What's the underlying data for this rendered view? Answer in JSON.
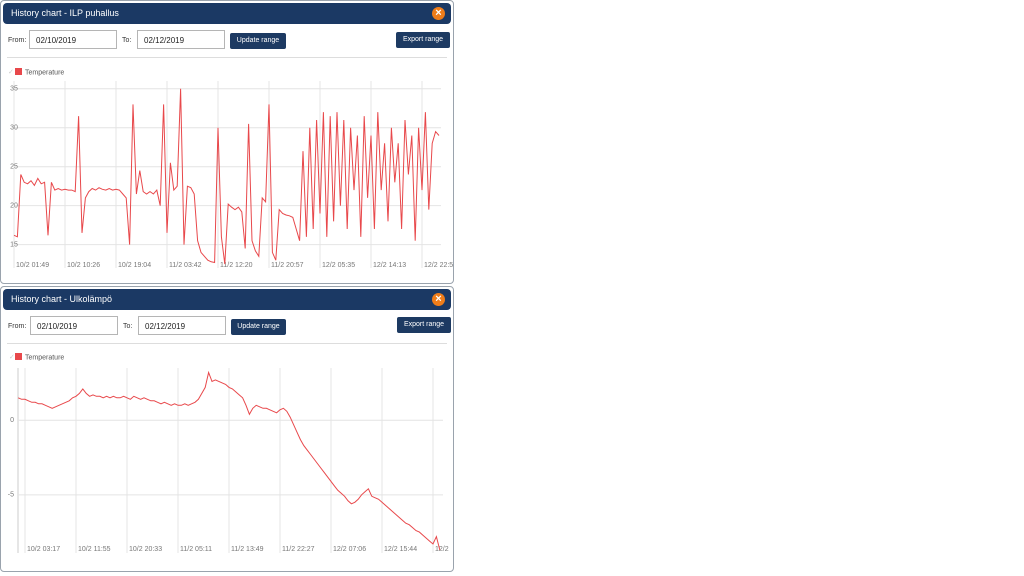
{
  "dialogs": [
    {
      "title": "History chart - ILP puhallus",
      "from_label": "From:",
      "from_value": "02/10/2019",
      "to_label": "To:",
      "to_value": "02/12/2019",
      "update_button": "Update range",
      "export_button": "Export range"
    },
    {
      "title": "History chart - Ulkolämpö",
      "from_label": "From:",
      "from_value": "02/10/2019",
      "to_label": "To:",
      "to_value": "02/12/2019",
      "update_button": "Update range",
      "export_button": "Export range"
    }
  ],
  "chart_data": [
    {
      "type": "line",
      "categories": [
        "10/2 01:49",
        null,
        null,
        null,
        null,
        null,
        null,
        null,
        null,
        null,
        null,
        null,
        null,
        null,
        null,
        "10/2 10:26",
        null,
        null,
        null,
        null,
        null,
        null,
        null,
        null,
        null,
        null,
        null,
        null,
        null,
        null,
        "10/2 19:04",
        null,
        null,
        null,
        null,
        null,
        null,
        null,
        null,
        null,
        null,
        null,
        null,
        null,
        null,
        "11/2 03:42",
        null,
        null,
        null,
        null,
        null,
        null,
        null,
        null,
        null,
        null,
        null,
        null,
        null,
        null,
        "11/2 12:20",
        null,
        null,
        null,
        null,
        null,
        null,
        null,
        null,
        null,
        null,
        null,
        null,
        null,
        null,
        "11/2 20:57",
        null,
        null,
        null,
        null,
        null,
        null,
        null,
        null,
        null,
        null,
        null,
        null,
        null,
        null,
        "12/2 05:35",
        null,
        null,
        null,
        null,
        null,
        null,
        null,
        null,
        null,
        null,
        null,
        null,
        null,
        null,
        "12/2 14:13",
        null,
        null,
        null,
        null,
        null,
        null,
        null,
        null,
        null,
        null,
        null,
        null,
        null,
        null,
        "12/2 22:5",
        null,
        null,
        null,
        null,
        null
      ],
      "series": [
        {
          "name": "Temperature",
          "color": "#e8484b",
          "values": [
            16.2,
            16,
            24,
            23,
            22.8,
            23.2,
            22.6,
            23.5,
            22.8,
            23,
            16.2,
            23,
            22,
            22.2,
            22,
            22.1,
            22,
            22,
            21.8,
            31.5,
            16.5,
            21,
            21.8,
            22.2,
            22,
            22.3,
            22.1,
            22,
            22.2,
            22,
            22.1,
            22,
            21.5,
            21,
            15,
            33,
            21.5,
            24.5,
            21.8,
            21.5,
            21.8,
            21.5,
            22,
            20,
            33,
            16.5,
            25.5,
            22,
            22.5,
            35,
            15,
            22.5,
            22.3,
            21.5,
            15.5,
            14,
            13.5,
            13,
            12.8,
            12.7,
            30,
            16,
            12.5,
            20.2,
            19.8,
            19.5,
            19.8,
            19.2,
            14.5,
            30.5,
            15.5,
            14.2,
            13.5,
            21,
            20.5,
            33,
            14,
            13,
            19.5,
            19,
            18.8,
            18.7,
            18.5,
            17,
            15.5,
            27,
            16,
            30,
            17,
            31,
            19,
            32,
            16,
            31.5,
            18,
            32,
            20,
            31,
            17,
            30,
            22,
            29,
            16,
            31.5,
            21,
            29,
            17,
            32,
            22,
            28,
            18,
            30,
            23,
            28,
            17,
            31,
            24,
            29,
            15.5,
            30,
            22,
            32,
            19.5,
            28,
            29.5,
            29
          ]
        }
      ],
      "ylim": [
        12,
        36
      ],
      "yticks": [
        15,
        20,
        25,
        30,
        35
      ],
      "grid": true
    },
    {
      "type": "line",
      "categories": [
        null,
        null,
        "10/2 03:17",
        null,
        null,
        null,
        null,
        null,
        null,
        null,
        null,
        null,
        null,
        null,
        null,
        null,
        null,
        "10/2 11:55",
        null,
        null,
        null,
        null,
        null,
        null,
        null,
        null,
        null,
        null,
        null,
        null,
        null,
        null,
        "10/2 20:33",
        null,
        null,
        null,
        null,
        null,
        null,
        null,
        null,
        null,
        null,
        null,
        null,
        null,
        null,
        "11/2 05:11",
        null,
        null,
        null,
        null,
        null,
        null,
        null,
        null,
        null,
        null,
        null,
        null,
        null,
        null,
        "11/2 13:49",
        null,
        null,
        null,
        null,
        null,
        null,
        null,
        null,
        null,
        null,
        null,
        null,
        null,
        null,
        "11/2 22:27",
        null,
        null,
        null,
        null,
        null,
        null,
        null,
        null,
        null,
        null,
        null,
        null,
        null,
        null,
        "12/2 07:06",
        null,
        null,
        null,
        null,
        null,
        null,
        null,
        null,
        null,
        null,
        null,
        null,
        null,
        null,
        "12/2 15:44",
        null,
        null,
        null,
        null,
        null,
        null,
        null,
        null,
        null,
        null,
        null,
        null,
        null,
        null,
        "12/2",
        null,
        null
      ],
      "series": [
        {
          "name": "Temperature",
          "color": "#e8484b",
          "values": [
            1.5,
            1.4,
            1.4,
            1.3,
            1.2,
            1.2,
            1.1,
            1.1,
            1,
            0.9,
            0.8,
            0.9,
            1,
            1.1,
            1.2,
            1.3,
            1.5,
            1.6,
            1.8,
            2.1,
            1.8,
            1.6,
            1.7,
            1.6,
            1.6,
            1.5,
            1.6,
            1.5,
            1.6,
            1.5,
            1.5,
            1.6,
            1.5,
            1.4,
            1.6,
            1.5,
            1.4,
            1.5,
            1.4,
            1.3,
            1.3,
            1.2,
            1.1,
            1.2,
            1.1,
            1,
            1.1,
            1,
            1,
            1.1,
            1,
            1.1,
            1.2,
            1.4,
            1.8,
            2.2,
            3.2,
            2.6,
            2.7,
            2.6,
            2.5,
            2.4,
            2.2,
            2.1,
            1.9,
            1.7,
            1.5,
            1,
            0.4,
            0.8,
            1,
            0.9,
            0.8,
            0.8,
            0.7,
            0.6,
            0.5,
            0.7,
            0.8,
            0.6,
            0.2,
            -0.3,
            -0.8,
            -1.3,
            -1.7,
            -2,
            -2.3,
            -2.6,
            -2.9,
            -3.2,
            -3.5,
            -3.8,
            -4.1,
            -4.4,
            -4.7,
            -4.9,
            -5.1,
            -5.4,
            -5.6,
            -5.5,
            -5.3,
            -5,
            -4.8,
            -4.6,
            -5.1,
            -5.2,
            -5.3,
            -5.5,
            -5.7,
            -5.9,
            -6.1,
            -6.3,
            -6.5,
            -6.7,
            -6.9,
            -7,
            -7.2,
            -7.4,
            -7.5,
            -7.7,
            -7.9,
            -8.1,
            -8.3,
            -7.8,
            -8.7
          ]
        }
      ],
      "ylim": [
        -8.9,
        3.5
      ],
      "yticks": [
        -5,
        0
      ],
      "grid": true
    }
  ]
}
